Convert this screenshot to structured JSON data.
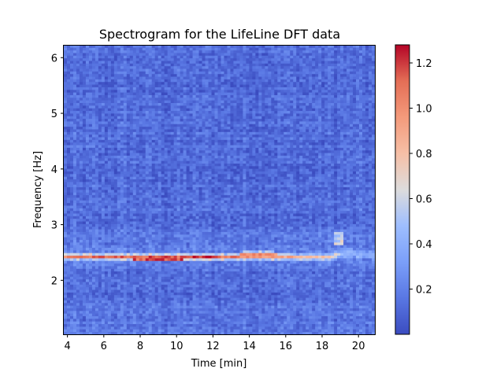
{
  "chart_data": {
    "type": "heatmap",
    "title": "Spectrogram for the LifeLine DFT data",
    "xlabel": "Time [min]",
    "ylabel": "Frequency [Hz]",
    "xlim": [
      3.8,
      20.9
    ],
    "ylim": [
      1.03,
      6.23
    ],
    "xticks": [
      "4",
      "6",
      "8",
      "10",
      "12",
      "14",
      "16",
      "18",
      "20"
    ],
    "yticks": [
      "2",
      "3",
      "4",
      "5",
      "6"
    ],
    "colorbar": {
      "range": [
        0.0,
        1.28
      ],
      "ticks": [
        "0.2",
        "0.4",
        "0.6",
        "0.8",
        "1.0",
        "1.2"
      ],
      "colormap": "coolwarm"
    },
    "time_bins": 99,
    "freq_bins": 110,
    "background_level": 0.12,
    "background_variation": 0.09,
    "dominant_ridge": [
      {
        "t": 3.8,
        "f": 2.42,
        "v": 1.05
      },
      {
        "t": 6.0,
        "f": 2.42,
        "v": 1.15
      },
      {
        "t": 8.0,
        "f": 2.41,
        "v": 1.2
      },
      {
        "t": 10.0,
        "f": 2.41,
        "v": 1.2
      },
      {
        "t": 11.5,
        "f": 2.42,
        "v": 1.27
      },
      {
        "t": 13.0,
        "f": 2.43,
        "v": 1.1
      },
      {
        "t": 14.5,
        "f": 2.45,
        "v": 1.05
      },
      {
        "t": 16.0,
        "f": 2.43,
        "v": 0.95
      },
      {
        "t": 17.5,
        "f": 2.42,
        "v": 0.85
      },
      {
        "t": 18.4,
        "f": 2.42,
        "v": 0.8
      },
      {
        "t": 19.3,
        "f": 2.5,
        "v": 0.45
      },
      {
        "t": 20.9,
        "f": 2.45,
        "v": 0.4
      }
    ],
    "secondary_feature": {
      "t": 18.9,
      "f": 2.75,
      "v": 0.45
    },
    "colors": {
      "low": "#3b4cc0",
      "high": "#b40426"
    }
  }
}
